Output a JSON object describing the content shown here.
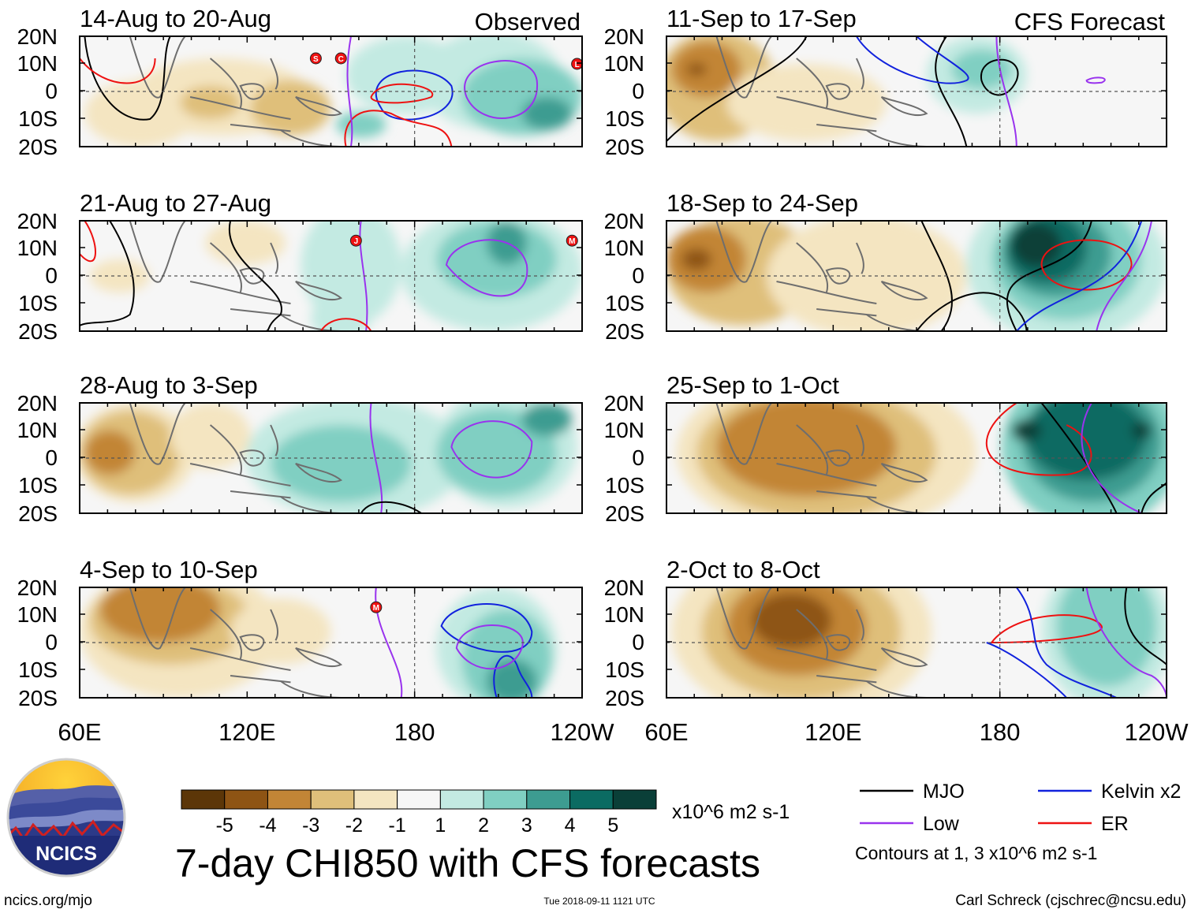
{
  "chart_data": {
    "type": "heatmap",
    "title": "7-day CHI850 with CFS forecasts",
    "variable": "CHI850 (850-hPa velocity potential) anomaly",
    "units": "x10^6 m2 s-1",
    "lon_ticks": [
      "60E",
      "120E",
      "180",
      "120W"
    ],
    "lat_ticks": [
      "20N",
      "10N",
      "0",
      "10S",
      "20S"
    ],
    "column_labels": {
      "left": "Observed",
      "right": "CFS Forecast"
    },
    "colorbar": {
      "levels": [
        -5,
        -4,
        -3,
        -2,
        -1,
        1,
        2,
        3,
        4,
        5
      ],
      "tick_labels": [
        "-5",
        "-4",
        "-3",
        "-2",
        "-1",
        "1",
        "2",
        "3",
        "4",
        "5"
      ],
      "colors": [
        "#5c3608",
        "#8e5414",
        "#c28536",
        "#dfbf7a",
        "#f4e5c1",
        "#f6f6f6",
        "#c3eae2",
        "#80cfc2",
        "#3d9c91",
        "#0b6b62",
        "#0a3f38"
      ]
    },
    "contours": {
      "legend": [
        {
          "label": "MJO",
          "color": "#000000"
        },
        {
          "label": "Low",
          "color": "#9933ee"
        },
        {
          "label": "Kelvin x2",
          "color": "#1122dd"
        },
        {
          "label": "ER",
          "color": "#ee1111"
        }
      ],
      "note": "Contours at 1, 3 x10^6 m2 s-1"
    },
    "panels": [
      {
        "id": "p1",
        "label": "14-Aug to 20-Aug",
        "tag": "Observed",
        "storms": [
          "S",
          "C",
          "L"
        ]
      },
      {
        "id": "p2",
        "label": "21-Aug to 27-Aug",
        "storms": [
          "J",
          "M"
        ]
      },
      {
        "id": "p3",
        "label": "28-Aug to 3-Sep",
        "storms": []
      },
      {
        "id": "p4",
        "label": "4-Sep to 10-Sep",
        "storms": [
          "M"
        ]
      },
      {
        "id": "p5",
        "label": "11-Sep to 17-Sep",
        "tag": "CFS Forecast",
        "storms": []
      },
      {
        "id": "p6",
        "label": "18-Sep to 24-Sep",
        "storms": []
      },
      {
        "id": "p7",
        "label": "25-Sep to 1-Oct",
        "storms": []
      },
      {
        "id": "p8",
        "label": "2-Oct to 8-Oct",
        "storms": []
      }
    ]
  },
  "footer": {
    "logo_text": "NCICS",
    "url": "ncics.org/mjo",
    "timestamp": "Tue 2018-09-11 1121 UTC",
    "author": "Carl Schreck (cjschrec@ncsu.edu)"
  }
}
